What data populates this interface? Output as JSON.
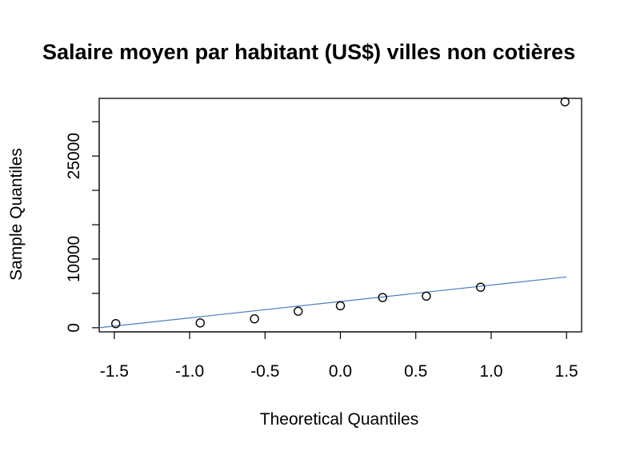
{
  "chart_data": {
    "type": "scatter",
    "title": "Salaire moyen par habitant (US$) villes non cotières",
    "xlabel": "Theoretical Quantiles",
    "ylabel": "Sample Quantiles",
    "xlim": [
      -1.6,
      1.6
    ],
    "ylim": [
      -600,
      33400
    ],
    "x_ticks": [
      -1.5,
      -1.0,
      -0.5,
      0.0,
      0.5,
      1.0,
      1.5
    ],
    "x_tick_labels": [
      "-1.5",
      "-1.0",
      "-0.5",
      "0.0",
      "0.5",
      "1.0",
      "1.5"
    ],
    "y_ticks": [
      0,
      5000,
      10000,
      15000,
      20000,
      25000,
      30000
    ],
    "y_tick_labels": [
      "0",
      "",
      "10000",
      "",
      "",
      "25000",
      ""
    ],
    "grid": false,
    "points": {
      "x": [
        -1.49,
        -0.93,
        -0.57,
        -0.28,
        0.0,
        0.28,
        0.57,
        0.93,
        1.49
      ],
      "y": [
        600,
        700,
        1300,
        2400,
        3200,
        4400,
        4600,
        5900,
        32900
      ]
    },
    "reference_line": {
      "x": [
        -1.6,
        1.5
      ],
      "y": [
        0,
        7400
      ],
      "color": "#4f7fbf"
    }
  }
}
